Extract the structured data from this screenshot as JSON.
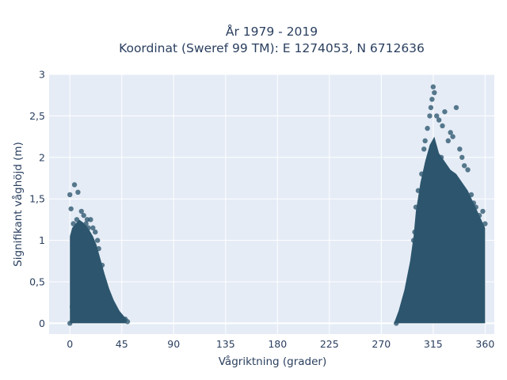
{
  "chart_data": {
    "type": "scatter",
    "title_line1": "År 1979 - 2019",
    "title_line2": "Koordinat (Sweref 99 TM): E 1274053, N 6712636",
    "xlabel": "Vågriktning (grader)",
    "ylabel": "Signifikant våghöjd (m)",
    "xlim": [
      -18,
      368
    ],
    "ylim": [
      -0.13,
      3
    ],
    "x_ticks": [
      0,
      45,
      90,
      135,
      180,
      225,
      270,
      315,
      360
    ],
    "x_tick_labels": [
      "0",
      "45",
      "90",
      "135",
      "180",
      "225",
      "270",
      "315",
      "360"
    ],
    "y_ticks": [
      0,
      0.5,
      1,
      1.5,
      2,
      2.5,
      3
    ],
    "y_tick_labels": [
      "0",
      "0,5",
      "1",
      "1,5",
      "2",
      "2,5",
      "3"
    ],
    "grid": true,
    "colors": {
      "plot_bg": "#e5ecf6",
      "grid": "#ffffff",
      "marker": "#2d566e",
      "text": "#2a3f5f"
    },
    "series": [
      {
        "values": [
          [
            0,
            0.0
          ],
          [
            2,
            0.2
          ],
          [
            4,
            0.4
          ],
          [
            6,
            0.6
          ],
          [
            8,
            0.8
          ],
          [
            5,
            1.0
          ],
          [
            7,
            1.1
          ],
          [
            3,
            1.2
          ],
          [
            6,
            1.25
          ],
          [
            1,
            1.38
          ],
          [
            0,
            1.55
          ],
          [
            4,
            1.67
          ],
          [
            7,
            1.58
          ],
          [
            10,
            1.35
          ],
          [
            12,
            1.3
          ],
          [
            15,
            1.25
          ],
          [
            18,
            1.25
          ],
          [
            20,
            1.15
          ],
          [
            22,
            1.1
          ],
          [
            25,
            0.9
          ],
          [
            28,
            0.7
          ],
          [
            30,
            0.5
          ],
          [
            33,
            0.35
          ],
          [
            36,
            0.25
          ],
          [
            40,
            0.15
          ],
          [
            44,
            0.08
          ],
          [
            48,
            0.05
          ],
          [
            50,
            0.02
          ],
          [
            14,
            1.2
          ],
          [
            16,
            1.15
          ],
          [
            24,
            1.0
          ],
          [
            12,
            0.5
          ],
          [
            20,
            0.3
          ],
          [
            283,
            0.0
          ],
          [
            290,
            0.2
          ],
          [
            295,
            0.5
          ],
          [
            298,
            1.0
          ],
          [
            299,
            1.1
          ],
          [
            300,
            1.4
          ],
          [
            302,
            1.6
          ],
          [
            305,
            1.8
          ],
          [
            307,
            2.1
          ],
          [
            308,
            2.2
          ],
          [
            310,
            2.35
          ],
          [
            312,
            2.5
          ],
          [
            313,
            2.6
          ],
          [
            314,
            2.7
          ],
          [
            315,
            2.85
          ],
          [
            316,
            2.78
          ],
          [
            318,
            2.5
          ],
          [
            320,
            2.45
          ],
          [
            325,
            2.55
          ],
          [
            323,
            2.38
          ],
          [
            328,
            2.2
          ],
          [
            330,
            2.3
          ],
          [
            335,
            2.6
          ],
          [
            332,
            2.25
          ],
          [
            338,
            2.1
          ],
          [
            340,
            2.0
          ],
          [
            342,
            1.9
          ],
          [
            345,
            1.85
          ],
          [
            348,
            1.55
          ],
          [
            350,
            1.45
          ],
          [
            352,
            1.4
          ],
          [
            355,
            1.3
          ],
          [
            358,
            1.35
          ],
          [
            360,
            1.2
          ],
          [
            340,
            1.5
          ],
          [
            320,
            1.8
          ],
          [
            330,
            1.0
          ],
          [
            350,
            0.8
          ],
          [
            300,
            0.5
          ],
          [
            310,
            0.3
          ],
          [
            345,
            0.4
          ],
          [
            355,
            0.2
          ],
          [
            322,
            2.0
          ]
        ]
      }
    ]
  }
}
